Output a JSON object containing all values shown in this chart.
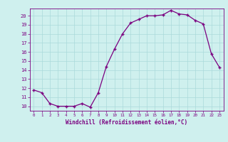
{
  "x": [
    0,
    1,
    2,
    3,
    4,
    5,
    6,
    7,
    8,
    9,
    10,
    11,
    12,
    13,
    14,
    15,
    16,
    17,
    18,
    19,
    20,
    21,
    22,
    23
  ],
  "y": [
    11.8,
    11.5,
    10.3,
    10.0,
    10.0,
    10.0,
    10.3,
    9.9,
    11.5,
    14.4,
    16.3,
    18.0,
    19.2,
    19.6,
    20.0,
    20.0,
    20.1,
    20.6,
    20.2,
    20.1,
    19.5,
    19.1,
    15.8,
    14.3
  ],
  "ylim": [
    9.5,
    20.8
  ],
  "yticks": [
    10,
    11,
    12,
    13,
    14,
    15,
    16,
    17,
    18,
    19,
    20
  ],
  "xlim": [
    -0.5,
    23.5
  ],
  "xticks": [
    0,
    1,
    2,
    3,
    4,
    5,
    6,
    7,
    8,
    9,
    10,
    11,
    12,
    13,
    14,
    15,
    16,
    17,
    18,
    19,
    20,
    21,
    22,
    23
  ],
  "xlabel": "Windchill (Refroidissement éolien,°C)",
  "line_color": "#7B0080",
  "marker": "+",
  "bg_color": "#cff0ee",
  "grid_color": "#aadada",
  "axis_color": "#7B0080",
  "tick_label_color": "#7B0080",
  "xlabel_color": "#7B0080"
}
